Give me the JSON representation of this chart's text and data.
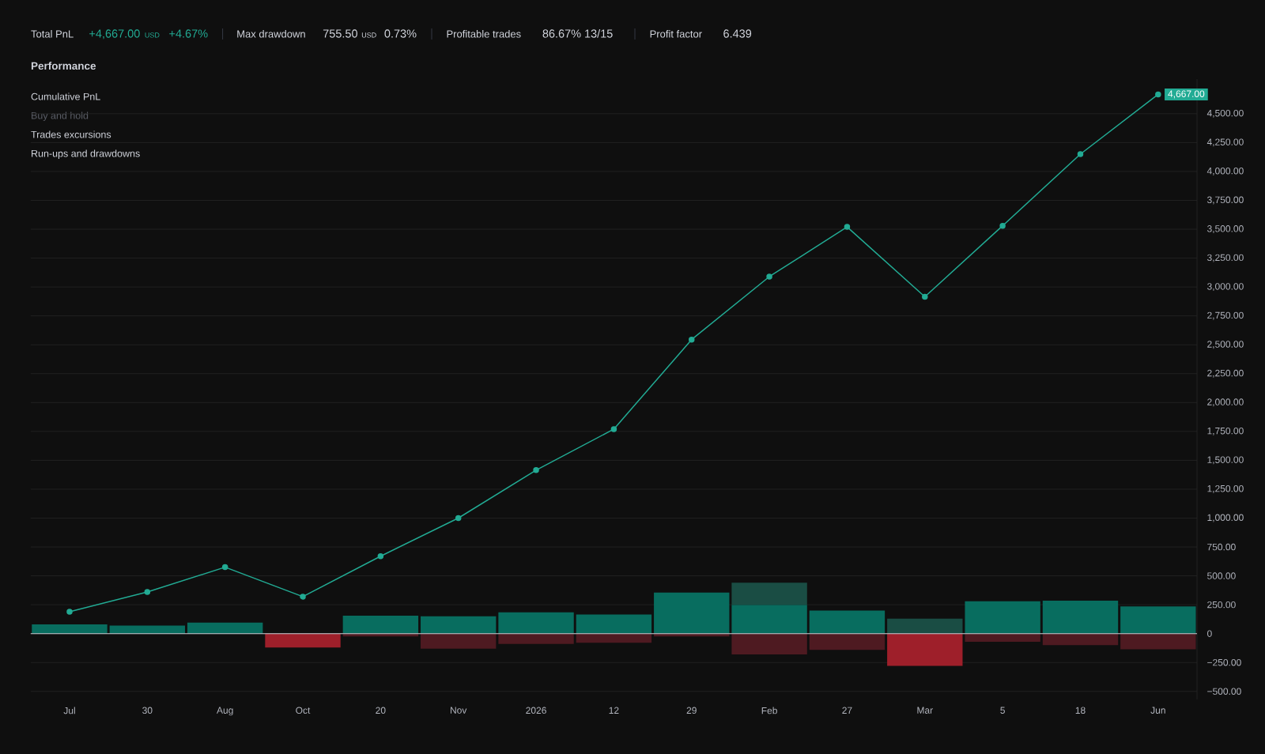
{
  "chart_data": {
    "type": "bar",
    "title": "Performance",
    "categories": [
      "Jul",
      "30",
      "Aug",
      "Oct",
      "20",
      "Nov",
      "2026",
      "12",
      "29",
      "Feb",
      "27",
      "Mar",
      "5",
      "18",
      "Jun"
    ],
    "stacked": true,
    "series": [
      {
        "type": "line",
        "color": "#22ab94",
        "marker": "circle",
        "values": [
          190,
          360,
          575,
          320,
          670,
          1000,
          1415,
          1770,
          2545,
          3090,
          3520,
          2915,
          3530,
          4150,
          4667
        ],
        "value_labels": [
          null,
          null,
          null,
          null,
          null,
          null,
          null,
          null,
          null,
          null,
          null,
          null,
          null,
          null,
          "4,667.00"
        ]
      },
      {
        "color": "#086d5f",
        "values": [
          80,
          70,
          95,
          null,
          155,
          150,
          185,
          165,
          355,
          250,
          200,
          null,
          280,
          285,
          235
        ]
      },
      {
        "color": "#1a4d44",
        "values": [
          null,
          null,
          null,
          null,
          null,
          null,
          null,
          null,
          null,
          190,
          null,
          130,
          null,
          null,
          null
        ]
      },
      {
        "color": "#9e1f2a",
        "values": [
          null,
          null,
          null,
          -120,
          null,
          null,
          null,
          null,
          null,
          null,
          null,
          -280,
          null,
          null,
          null
        ]
      },
      {
        "color": "#4e1a21",
        "values": [
          null,
          null,
          null,
          null,
          -25,
          -130,
          -90,
          -80,
          -25,
          -180,
          -140,
          null,
          -70,
          -100,
          -135
        ]
      }
    ],
    "ylim": [
      -570,
      4800
    ],
    "yticks": [
      {
        "value": -500,
        "label": "−500.00"
      },
      {
        "value": -250,
        "label": "−250.00"
      },
      0,
      {
        "value": 250,
        "label": "250.00"
      },
      {
        "value": 500,
        "label": "500.00"
      },
      {
        "value": 750,
        "label": "750.00"
      },
      {
        "value": 1000,
        "label": "1,000.00"
      },
      {
        "value": 1250,
        "label": "1,250.00"
      },
      {
        "value": 1500,
        "label": "1,500.00"
      },
      {
        "value": 1750,
        "label": "1,750.00"
      },
      {
        "value": 2000,
        "label": "2,000.00"
      },
      {
        "value": 2250,
        "label": "2,250.00"
      },
      {
        "value": 2500,
        "label": "2,500.00"
      },
      {
        "value": 2750,
        "label": "2,750.00"
      },
      {
        "value": 3000,
        "label": "3,000.00"
      },
      {
        "value": 3250,
        "label": "3,250.00"
      },
      {
        "value": 3500,
        "label": "3,500.00"
      },
      {
        "value": 3750,
        "label": "3,750.00"
      },
      {
        "value": 4000,
        "label": "4,000.00"
      },
      {
        "value": 4250,
        "label": "4,250.00"
      },
      {
        "value": 4500,
        "label": "4,500.00"
      }
    ],
    "grid": "y",
    "ref_lines": [
      {
        "axis": "y",
        "value": 0,
        "color": "#c8cbd2"
      }
    ],
    "annotations": [
      "Total PnL",
      "+4,667.00",
      "USD",
      "+4.67%",
      "Max drawdown",
      "755.50",
      "USD",
      "0.73%",
      "Profitable trades",
      "86.67%",
      "13/15",
      "Profit factor",
      "6.439",
      "Cumulative PnL",
      "Buy and hold",
      "Trades excursions",
      "Run-ups and drawdowns"
    ]
  }
}
